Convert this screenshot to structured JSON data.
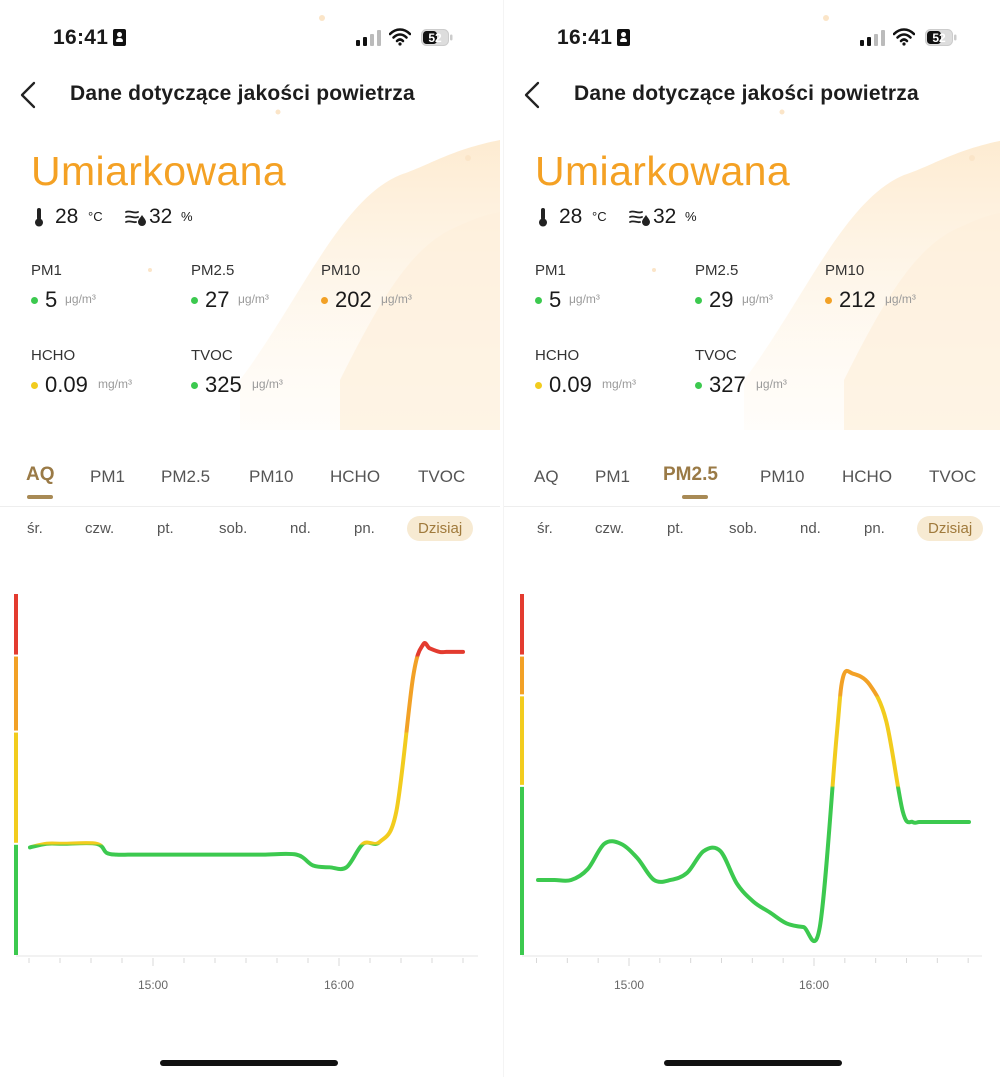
{
  "screens": [
    {
      "status": {
        "time": "16:41",
        "battery": "52"
      },
      "nav": {
        "title": "Dane dotyczące jakości powietrza"
      },
      "air_quality": {
        "status": "Umiarkowana",
        "status_color": "#f4a124"
      },
      "weather": {
        "temp_value": "28",
        "temp_unit": "°C",
        "humidity_value": "32",
        "humidity_unit": "%"
      },
      "metrics": [
        {
          "label": "PM1",
          "value": "5",
          "unit": "μg/m³",
          "dot_color": "#3cc94f"
        },
        {
          "label": "PM2.5",
          "value": "27",
          "unit": "μg/m³",
          "dot_color": "#3cc94f"
        },
        {
          "label": "PM10",
          "value": "202",
          "unit": "μg/m³",
          "dot_color": "#f2a126"
        },
        {
          "label": "HCHO",
          "value": "0.09",
          "unit": "mg/m³",
          "dot_color": "#f2cc1e"
        },
        {
          "label": "TVOC",
          "value": "325",
          "unit": "μg/m³",
          "dot_color": "#3cc94f"
        }
      ],
      "tabs": [
        {
          "label": "AQ",
          "active": true
        },
        {
          "label": "PM1",
          "active": false
        },
        {
          "label": "PM2.5",
          "active": false
        },
        {
          "label": "PM10",
          "active": false
        },
        {
          "label": "HCHO",
          "active": false
        },
        {
          "label": "TVOC",
          "active": false
        }
      ],
      "days": [
        {
          "label": "śr.",
          "active": false
        },
        {
          "label": "czw.",
          "active": false
        },
        {
          "label": "pt.",
          "active": false
        },
        {
          "label": "sob.",
          "active": false
        },
        {
          "label": "nd.",
          "active": false
        },
        {
          "label": "pn.",
          "active": false
        },
        {
          "label": "Dzisiaj",
          "active": true
        }
      ],
      "chart_data": {
        "type": "line",
        "title": "",
        "xlabel": "",
        "ylabel": "",
        "x_tick_labels": [
          "15:00",
          "16:00"
        ],
        "x_range_minutes": [
          870,
          1000
        ],
        "y_range": [
          0,
          100
        ],
        "series": [
          {
            "x": [
              870,
              875,
              880,
              890,
              893,
              896,
              900,
              905,
              910,
              920,
              930,
              940,
              950,
              955,
              960,
              965,
              970,
              975,
              980,
              985,
              988,
              990,
              993,
              995,
              998,
              1000
            ],
            "y": [
              30,
              31,
              31,
              31,
              28.5,
              28,
              28,
              28,
              28,
              28,
              28,
              28,
              28,
              25,
              24.5,
              24.5,
              31,
              31.5,
              40,
              77,
              86,
              85,
              84,
              84,
              84,
              84
            ]
          }
        ],
        "color_bands": [
          {
            "from": 0,
            "to": 31,
            "color": "#3cc94f"
          },
          {
            "from": 31,
            "to": 62,
            "color": "#f2cc1e"
          },
          {
            "from": 62,
            "to": 83,
            "color": "#f2a126"
          },
          {
            "from": 83,
            "to": 100,
            "color": "#e33b2f"
          }
        ],
        "grid": false
      }
    },
    {
      "status": {
        "time": "16:41",
        "battery": "52"
      },
      "nav": {
        "title": "Dane dotyczące jakości powietrza"
      },
      "air_quality": {
        "status": "Umiarkowana",
        "status_color": "#f4a124"
      },
      "weather": {
        "temp_value": "28",
        "temp_unit": "°C",
        "humidity_value": "32",
        "humidity_unit": "%"
      },
      "metrics": [
        {
          "label": "PM1",
          "value": "5",
          "unit": "μg/m³",
          "dot_color": "#3cc94f"
        },
        {
          "label": "PM2.5",
          "value": "29",
          "unit": "μg/m³",
          "dot_color": "#3cc94f"
        },
        {
          "label": "PM10",
          "value": "212",
          "unit": "μg/m³",
          "dot_color": "#f2a126"
        },
        {
          "label": "HCHO",
          "value": "0.09",
          "unit": "mg/m³",
          "dot_color": "#f2cc1e"
        },
        {
          "label": "TVOC",
          "value": "327",
          "unit": "μg/m³",
          "dot_color": "#3cc94f"
        }
      ],
      "tabs": [
        {
          "label": "AQ",
          "active": false
        },
        {
          "label": "PM1",
          "active": false
        },
        {
          "label": "PM2.5",
          "active": true
        },
        {
          "label": "PM10",
          "active": false
        },
        {
          "label": "HCHO",
          "active": false
        },
        {
          "label": "TVOC",
          "active": false
        }
      ],
      "days": [
        {
          "label": "śr.",
          "active": false
        },
        {
          "label": "czw.",
          "active": false
        },
        {
          "label": "pt.",
          "active": false
        },
        {
          "label": "sob.",
          "active": false
        },
        {
          "label": "nd.",
          "active": false
        },
        {
          "label": "pn.",
          "active": false
        },
        {
          "label": "Dzisiaj",
          "active": true
        }
      ],
      "chart_data": {
        "type": "line",
        "title": "",
        "xlabel": "",
        "ylabel": "",
        "x_tick_labels": [
          "15:00",
          "16:00"
        ],
        "x_range_minutes": [
          870,
          1000
        ],
        "y_range": [
          0,
          100
        ],
        "series": [
          {
            "x": [
              870,
              875,
              880,
              885,
              890,
              895,
              900,
              905,
              910,
              915,
              920,
              925,
              930,
              935,
              940,
              945,
              950,
              955,
              960,
              962,
              965,
              970,
              975,
              980,
              983,
              985,
              988,
              990,
              995,
              1000
            ],
            "y": [
              21,
              21,
              21,
              24,
              31,
              31,
              27,
              21,
              21,
              23,
              29,
              29,
              20,
              15,
              12,
              9,
              8,
              8,
              60,
              77,
              78,
              75,
              65,
              40,
              37,
              37,
              37,
              37,
              37,
              37
            ]
          }
        ],
        "color_bands": [
          {
            "from": 0,
            "to": 47,
            "color": "#3cc94f"
          },
          {
            "from": 47,
            "to": 72,
            "color": "#f2cc1e"
          },
          {
            "from": 72,
            "to": 83,
            "color": "#f2a126"
          },
          {
            "from": 83,
            "to": 100,
            "color": "#e33b2f"
          }
        ],
        "grid": false
      }
    }
  ]
}
